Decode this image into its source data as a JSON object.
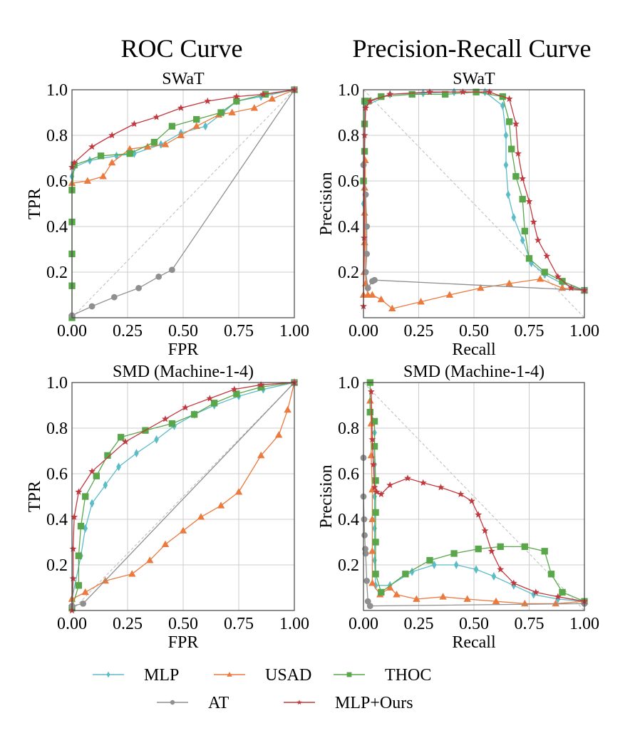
{
  "column_titles": [
    "ROC Curve",
    "Precision-Recall Curve"
  ],
  "series_styles": {
    "MLP": {
      "color": "#5bbcc8",
      "marker": "diamond"
    },
    "USAD": {
      "color": "#ea7a3e",
      "marker": "triangle"
    },
    "THOC": {
      "color": "#5aa64a",
      "marker": "square"
    },
    "AT": {
      "color": "#8f8f8f",
      "marker": "circle"
    },
    "MLP+Ours": {
      "color": "#c0393f",
      "marker": "star"
    }
  },
  "legend": {
    "row1": [
      "MLP",
      "USAD",
      "THOC"
    ],
    "row2": [
      "AT",
      "MLP+Ours"
    ]
  },
  "chart_data": [
    {
      "id": "roc-swat",
      "type": "line",
      "title": "SWaT",
      "xlabel": "FPR",
      "ylabel": "TPR",
      "xlim": [
        0,
        1
      ],
      "ylim": [
        0,
        1
      ],
      "xticks": [
        "0.00",
        "0.25",
        "0.50",
        "0.75",
        "1.00"
      ],
      "yticks": [
        "0.2",
        "0.4",
        "0.6",
        "0.8",
        "1.0"
      ],
      "grid": true,
      "diagonal": "up",
      "series": [
        {
          "name": "MLP",
          "x": [
            0,
            0.01,
            0.08,
            0.2,
            0.28,
            0.4,
            0.49,
            0.6,
            0.68,
            0.74,
            0.85,
            1.0
          ],
          "y": [
            0.62,
            0.66,
            0.69,
            0.71,
            0.72,
            0.76,
            0.81,
            0.84,
            0.9,
            0.95,
            0.97,
            1.0
          ]
        },
        {
          "name": "USAD",
          "x": [
            0,
            0.07,
            0.14,
            0.18,
            0.26,
            0.34,
            0.42,
            0.49,
            0.56,
            0.66,
            0.72,
            0.82,
            0.9,
            1.0
          ],
          "y": [
            0.59,
            0.6,
            0.62,
            0.68,
            0.74,
            0.75,
            0.76,
            0.8,
            0.84,
            0.89,
            0.9,
            0.92,
            0.96,
            1.0
          ]
        },
        {
          "name": "THOC",
          "x": [
            0,
            0,
            0,
            0,
            0,
            0.01,
            0.13,
            0.26,
            0.37,
            0.45,
            0.56,
            0.67,
            0.74,
            0.87,
            1.0
          ],
          "y": [
            0.0,
            0.14,
            0.28,
            0.42,
            0.56,
            0.67,
            0.71,
            0.72,
            0.77,
            0.84,
            0.87,
            0.9,
            0.95,
            0.98,
            1.0
          ]
        },
        {
          "name": "AT",
          "x": [
            0,
            0.09,
            0.19,
            0.3,
            0.39,
            0.45,
            1.0
          ],
          "y": [
            0.01,
            0.05,
            0.09,
            0.13,
            0.18,
            0.21,
            1.0
          ]
        },
        {
          "name": "MLP+Ours",
          "x": [
            0,
            0.01,
            0.09,
            0.18,
            0.28,
            0.38,
            0.49,
            0.61,
            0.74,
            0.86,
            1.0
          ],
          "y": [
            0.66,
            0.68,
            0.75,
            0.8,
            0.85,
            0.88,
            0.92,
            0.95,
            0.97,
            0.98,
            1.0
          ]
        }
      ]
    },
    {
      "id": "pr-swat",
      "type": "line",
      "title": "SWaT",
      "xlabel": "Recall",
      "ylabel": "Precision",
      "xlim": [
        0,
        1
      ],
      "ylim": [
        0,
        1
      ],
      "xticks": [
        "0.00",
        "0.25",
        "0.50",
        "0.75",
        "1.00"
      ],
      "yticks": [
        "0.2",
        "0.4",
        "0.6",
        "0.8",
        "1.0"
      ],
      "grid": true,
      "diagonal": "down",
      "series": [
        {
          "name": "MLP",
          "x": [
            0,
            0.01,
            0.12,
            0.27,
            0.41,
            0.55,
            0.63,
            0.645,
            0.645,
            0.655,
            0.68,
            0.72,
            0.76,
            0.82,
            0.9,
            1.0
          ],
          "y": [
            0.5,
            0.93,
            0.98,
            0.985,
            0.99,
            0.99,
            0.93,
            0.8,
            0.67,
            0.54,
            0.44,
            0.34,
            0.24,
            0.19,
            0.15,
            0.12
          ]
        },
        {
          "name": "USAD",
          "x": [
            0,
            0.003,
            0.005,
            0.005,
            0.005,
            0.008,
            0.01,
            0.02,
            0.04,
            0.08,
            0.13,
            0.26,
            0.39,
            0.53,
            0.66,
            0.8,
            0.9,
            1.0
          ],
          "y": [
            0.1,
            0.2,
            0.33,
            0.46,
            0.57,
            0.69,
            0.15,
            0.1,
            0.1,
            0.08,
            0.04,
            0.07,
            0.1,
            0.13,
            0.15,
            0.17,
            0.13,
            0.12
          ]
        },
        {
          "name": "THOC",
          "x": [
            0,
            0.005,
            0.005,
            0.005,
            0.01,
            0.02,
            0.08,
            0.22,
            0.37,
            0.51,
            0.63,
            0.66,
            0.67,
            0.69,
            0.72,
            0.73,
            0.75,
            0.82,
            0.9,
            1.0
          ],
          "y": [
            0.6,
            0.73,
            0.85,
            0.95,
            0.95,
            0.95,
            0.97,
            0.98,
            0.98,
            0.99,
            0.97,
            0.86,
            0.74,
            0.62,
            0.52,
            0.38,
            0.26,
            0.2,
            0.16,
            0.12
          ]
        },
        {
          "name": "AT",
          "x": [
            0,
            0.01,
            0.015,
            0.015,
            0.01,
            0.02,
            0.04,
            0.05,
            1.0
          ],
          "y": [
            0.67,
            0.54,
            0.4,
            0.28,
            0.2,
            0.13,
            0.16,
            0.165,
            0.12
          ]
        },
        {
          "name": "MLP+Ours",
          "x": [
            0,
            0.003,
            0.005,
            0.01,
            0.03,
            0.12,
            0.3,
            0.45,
            0.57,
            0.66,
            0.69,
            0.7,
            0.72,
            0.75,
            0.77,
            0.79,
            0.83,
            0.88,
            0.94,
            1.0
          ],
          "y": [
            0.05,
            0.35,
            0.8,
            0.92,
            0.95,
            0.98,
            0.99,
            0.99,
            0.99,
            0.96,
            0.85,
            0.72,
            0.61,
            0.51,
            0.42,
            0.34,
            0.27,
            0.18,
            0.13,
            0.12
          ]
        }
      ]
    },
    {
      "id": "roc-smd",
      "type": "line",
      "title": "SMD (Machine-1-4)",
      "xlabel": "FPR",
      "ylabel": "TPR",
      "xlim": [
        0,
        1
      ],
      "ylim": [
        0,
        1
      ],
      "xticks": [
        "0.00",
        "0.25",
        "0.50",
        "0.75",
        "1.00"
      ],
      "yticks": [
        "0.2",
        "0.4",
        "0.6",
        "0.8",
        "1.0"
      ],
      "grid": true,
      "diagonal": "up",
      "series": [
        {
          "name": "MLP",
          "x": [
            0,
            0.04,
            0.06,
            0.09,
            0.15,
            0.21,
            0.29,
            0.38,
            0.46,
            0.55,
            0.64,
            0.75,
            0.86,
            1.0
          ],
          "y": [
            0.05,
            0.24,
            0.36,
            0.47,
            0.55,
            0.63,
            0.69,
            0.75,
            0.81,
            0.86,
            0.9,
            0.94,
            0.97,
            1.0
          ]
        },
        {
          "name": "USAD",
          "x": [
            0,
            0.06,
            0.15,
            0.27,
            0.35,
            0.42,
            0.5,
            0.58,
            0.67,
            0.75,
            0.85,
            0.93,
            0.97,
            1.0
          ],
          "y": [
            0.05,
            0.08,
            0.13,
            0.16,
            0.22,
            0.29,
            0.35,
            0.41,
            0.46,
            0.52,
            0.68,
            0.77,
            0.88,
            1.0
          ]
        },
        {
          "name": "THOC",
          "x": [
            0,
            0.03,
            0.03,
            0.04,
            0.06,
            0.11,
            0.16,
            0.22,
            0.33,
            0.45,
            0.55,
            0.64,
            0.74,
            0.85,
            1.0
          ],
          "y": [
            0.01,
            0.11,
            0.24,
            0.37,
            0.5,
            0.59,
            0.68,
            0.76,
            0.79,
            0.82,
            0.86,
            0.91,
            0.95,
            0.98,
            1.0
          ]
        },
        {
          "name": "AT",
          "x": [
            0,
            0.05,
            1.0
          ],
          "y": [
            0.02,
            0.03,
            1.0
          ]
        },
        {
          "name": "MLP+Ours",
          "x": [
            0,
            0.005,
            0.005,
            0.01,
            0.03,
            0.09,
            0.24,
            0.42,
            0.51,
            0.62,
            0.73,
            0.85,
            1.0
          ],
          "y": [
            0.0,
            0.14,
            0.27,
            0.41,
            0.52,
            0.61,
            0.74,
            0.84,
            0.89,
            0.93,
            0.97,
            0.99,
            1.0
          ]
        }
      ]
    },
    {
      "id": "pr-smd",
      "type": "line",
      "title": "SMD (Machine-1-4)",
      "xlabel": "Recall",
      "ylabel": "Precision",
      "xlim": [
        0,
        1
      ],
      "ylim": [
        0,
        1
      ],
      "xticks": [
        "0.00",
        "0.25",
        "0.50",
        "0.75",
        "1.00"
      ],
      "yticks": [
        "0.2",
        "0.4",
        "0.6",
        "0.8",
        "1.0"
      ],
      "grid": true,
      "diagonal": "down",
      "series": [
        {
          "name": "MLP",
          "x": [
            0.05,
            0.05,
            0.05,
            0.05,
            0.05,
            0.055,
            0.12,
            0.22,
            0.32,
            0.42,
            0.51,
            0.59,
            0.68,
            0.77,
            0.88,
            1.0
          ],
          "y": [
            0.78,
            0.64,
            0.5,
            0.36,
            0.22,
            0.11,
            0.11,
            0.17,
            0.2,
            0.2,
            0.18,
            0.15,
            0.11,
            0.07,
            0.05,
            0.04
          ]
        },
        {
          "name": "USAD",
          "x": [
            0.03,
            0.035,
            0.035,
            0.04,
            0.04,
            0.04,
            0.04,
            0.075,
            0.12,
            0.15,
            0.24,
            0.36,
            0.47,
            0.6,
            0.73,
            0.87,
            1.0
          ],
          "y": [
            0.92,
            0.82,
            0.68,
            0.53,
            0.4,
            0.26,
            0.12,
            0.07,
            0.1,
            0.07,
            0.05,
            0.06,
            0.05,
            0.04,
            0.03,
            0.03,
            0.04
          ]
        },
        {
          "name": "THOC",
          "x": [
            0.03,
            0.03,
            0.05,
            0.05,
            0.055,
            0.055,
            0.055,
            0.055,
            0.08,
            0.19,
            0.3,
            0.41,
            0.52,
            0.62,
            0.73,
            0.82,
            0.85,
            0.9,
            1.0
          ],
          "y": [
            1.0,
            0.87,
            0.83,
            0.72,
            0.57,
            0.43,
            0.3,
            0.16,
            0.08,
            0.16,
            0.22,
            0.25,
            0.27,
            0.28,
            0.28,
            0.26,
            0.16,
            0.08,
            0.04
          ]
        },
        {
          "name": "AT",
          "x": [
            0.0,
            0.0,
            0.003,
            0.005,
            0.008,
            0.01,
            0.015,
            0.02,
            0.03,
            1.0
          ],
          "y": [
            0.67,
            0.5,
            0.4,
            0.33,
            0.27,
            0.25,
            0.13,
            0.04,
            0.02,
            0.03
          ]
        },
        {
          "name": "MLP+Ours",
          "x": [
            0.035,
            0.04,
            0.045,
            0.05,
            0.06,
            0.08,
            0.12,
            0.2,
            0.27,
            0.35,
            0.44,
            0.49,
            0.52,
            0.55,
            0.58,
            0.62,
            0.68,
            0.78,
            0.88,
            1.0
          ],
          "y": [
            0.96,
            0.75,
            0.64,
            0.54,
            0.52,
            0.51,
            0.55,
            0.58,
            0.56,
            0.54,
            0.51,
            0.48,
            0.42,
            0.35,
            0.26,
            0.18,
            0.12,
            0.08,
            0.06,
            0.04
          ]
        }
      ]
    }
  ]
}
